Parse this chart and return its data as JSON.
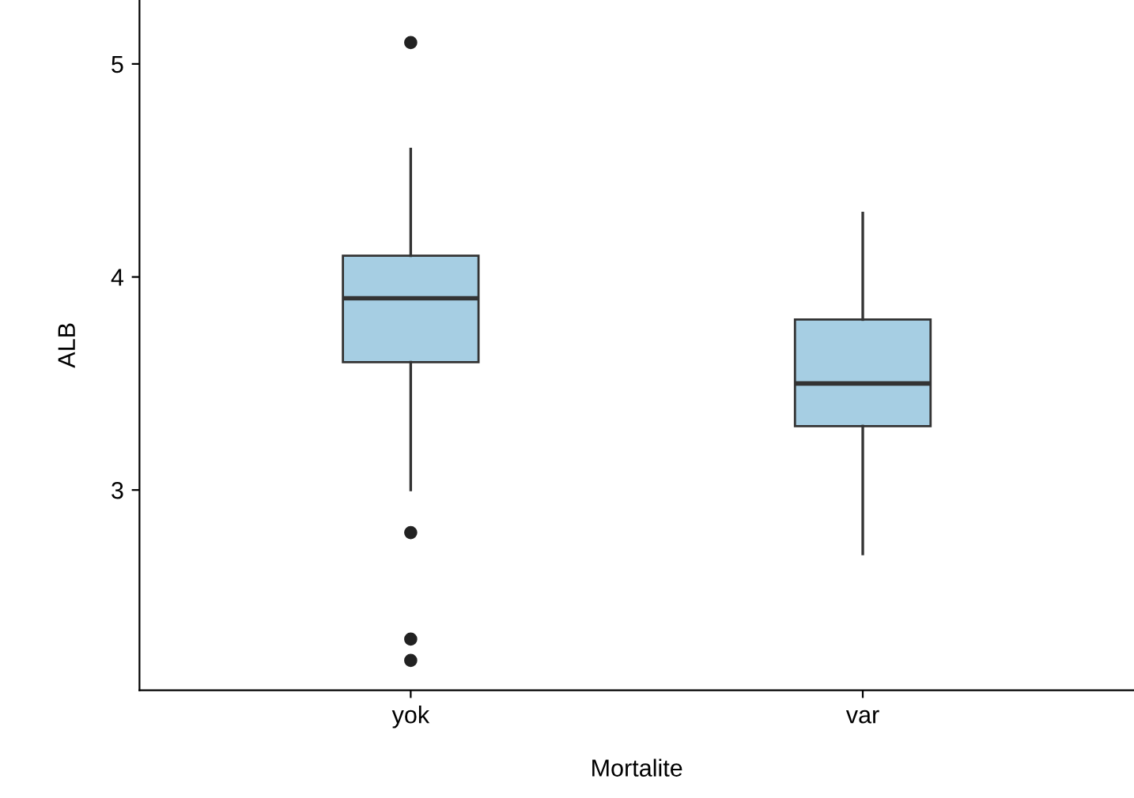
{
  "chart_data": {
    "type": "box",
    "xlabel": "Mortalite",
    "ylabel": "ALB",
    "categories": [
      "yok",
      "var"
    ],
    "boxes": [
      {
        "low": 3.0,
        "q1": 3.6,
        "median": 3.9,
        "q3": 4.1,
        "high": 4.6,
        "outliers": [
          5.1,
          2.8,
          2.3,
          2.2
        ]
      },
      {
        "low": 2.7,
        "q1": 3.3,
        "median": 3.5,
        "q3": 3.8,
        "high": 4.3
      }
    ],
    "color": "#a6cee3",
    "ylim": [
      2.06,
      5.3
    ],
    "yticks": [
      3,
      4,
      5
    ],
    "grid": false,
    "legend": false
  }
}
